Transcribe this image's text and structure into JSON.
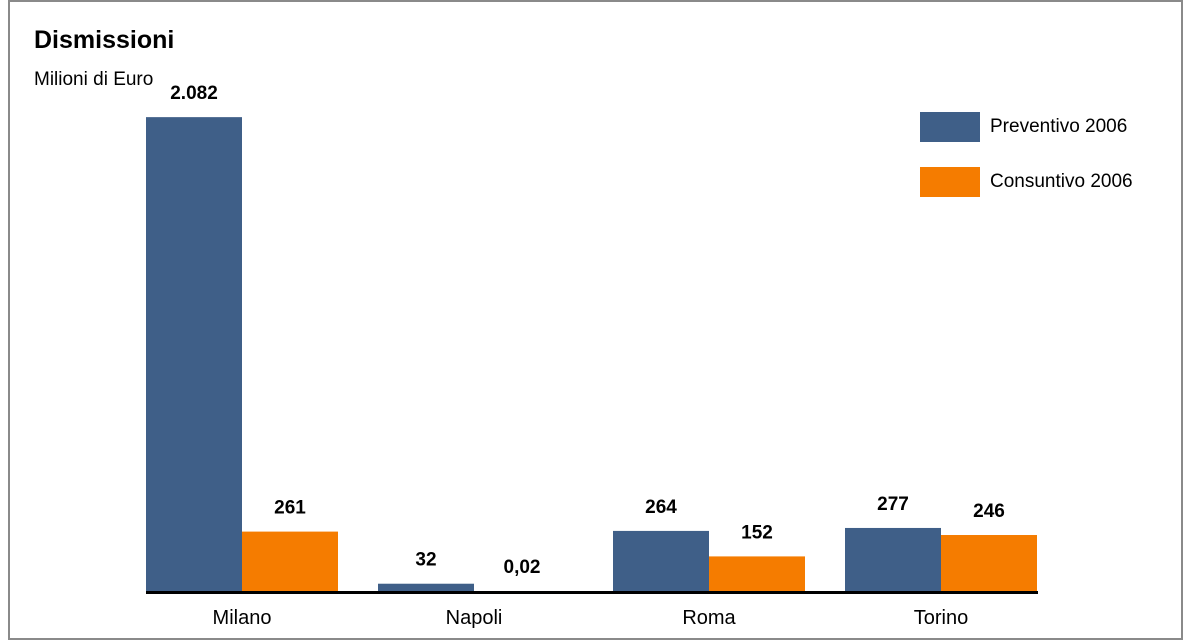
{
  "chart_data": {
    "type": "bar",
    "title": "Dismissioni",
    "subtitle": "Milioni di Euro",
    "categories": [
      "Milano",
      "Napoli",
      "Roma",
      "Torino"
    ],
    "series": [
      {
        "name": "Preventivo 2006",
        "color": "#3f5f88",
        "values": [
          2082,
          32,
          264,
          277
        ],
        "labels": [
          "2.082",
          "32",
          "264",
          "277"
        ]
      },
      {
        "name": "Consuntivo 2006",
        "color": "#f57c00",
        "values": [
          261,
          0.02,
          152,
          246
        ],
        "labels": [
          "261",
          "0,02",
          "152",
          "246"
        ]
      }
    ],
    "ylim": [
      0,
      2500
    ],
    "legend_position": "top-right",
    "grid": false
  }
}
